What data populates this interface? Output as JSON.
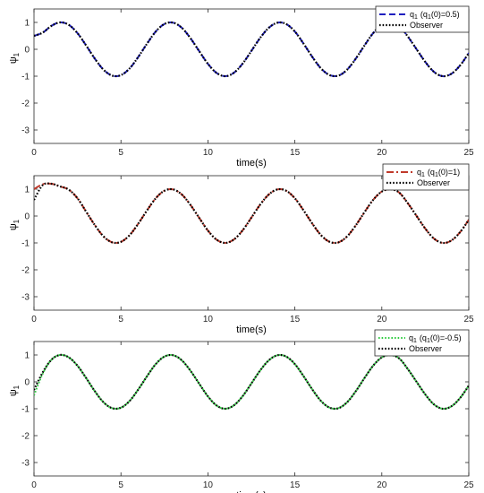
{
  "chart_data": [
    {
      "type": "line",
      "xlabel": "time(s)",
      "ylabel": "ψ",
      "ylabel_sub": "1",
      "xlim": [
        0,
        25
      ],
      "ylim": [
        -3.5,
        1.5
      ],
      "x_ticks": [
        "0",
        "5",
        "10",
        "15",
        "20",
        "25"
      ],
      "y_ticks": [
        "1",
        "0",
        "-1",
        "-2",
        "-3"
      ],
      "grid": false,
      "legend_position": "top-right",
      "x": [
        0,
        0.5,
        1,
        1.5,
        2,
        2.5,
        3,
        3.5,
        4,
        4.5,
        5,
        5.5,
        6,
        6.5,
        7,
        7.5,
        8,
        8.5,
        9,
        9.5,
        10,
        10.5,
        11,
        11.5,
        12,
        12.5,
        13,
        13.5,
        14,
        14.5,
        15,
        15.5,
        16,
        16.5,
        17,
        17.5,
        18,
        18.5,
        19,
        19.5,
        20,
        20.5,
        21,
        21.5,
        22,
        22.5,
        23,
        23.5,
        24,
        24.5,
        25
      ],
      "series": [
        {
          "name": "q₁ (q₁(0)=0.5)",
          "legend_main": "q",
          "legend_sub": "1",
          "legend_rest": "(q",
          "legend_sub2": "1",
          "legend_tail": "(0)=0.5)",
          "color": "#1f1fbf",
          "style": "dashed",
          "values": [
            0.5,
            0.62,
            0.87,
            1.0,
            0.91,
            0.6,
            0.14,
            -0.35,
            -0.76,
            -0.98,
            -0.96,
            -0.71,
            -0.28,
            0.21,
            0.66,
            0.94,
            0.99,
            0.8,
            0.41,
            -0.07,
            -0.54,
            -0.88,
            -1.0,
            -0.87,
            -0.53,
            -0.06,
            0.42,
            0.8,
            0.99,
            0.94,
            0.66,
            0.21,
            -0.28,
            -0.71,
            -0.96,
            -0.98,
            -0.76,
            -0.35,
            0.14,
            0.6,
            0.91,
            1.0,
            0.87,
            0.47,
            0.0,
            -0.47,
            -0.84,
            -1.0,
            -0.91,
            -0.6,
            -0.14
          ]
        },
        {
          "name": "Observer",
          "color": "#000000",
          "style": "dotted",
          "values": [
            0.5,
            0.62,
            0.87,
            1.0,
            0.91,
            0.6,
            0.14,
            -0.35,
            -0.76,
            -0.98,
            -0.96,
            -0.71,
            -0.28,
            0.21,
            0.66,
            0.94,
            0.99,
            0.8,
            0.41,
            -0.07,
            -0.54,
            -0.88,
            -1.0,
            -0.87,
            -0.53,
            -0.06,
            0.42,
            0.8,
            0.99,
            0.94,
            0.66,
            0.21,
            -0.28,
            -0.71,
            -0.96,
            -0.98,
            -0.76,
            -0.35,
            0.14,
            0.6,
            0.91,
            1.0,
            0.87,
            0.47,
            0.0,
            -0.47,
            -0.84,
            -1.0,
            -0.91,
            -0.6,
            -0.14
          ]
        }
      ]
    },
    {
      "type": "line",
      "xlabel": "time(s)",
      "ylabel": "ψ",
      "ylabel_sub": "1",
      "xlim": [
        0,
        25
      ],
      "ylim": [
        -3.5,
        1.5
      ],
      "x_ticks": [
        "0",
        "5",
        "10",
        "15",
        "20",
        "25"
      ],
      "y_ticks": [
        "1",
        "0",
        "-1",
        "-2",
        "-3"
      ],
      "grid": false,
      "legend_position": "top-right",
      "x": [
        0,
        0.5,
        1,
        1.5,
        2,
        2.5,
        3,
        3.5,
        4,
        4.5,
        5,
        5.5,
        6,
        6.5,
        7,
        7.5,
        8,
        8.5,
        9,
        9.5,
        10,
        10.5,
        11,
        11.5,
        12,
        12.5,
        13,
        13.5,
        14,
        14.5,
        15,
        15.5,
        16,
        16.5,
        17,
        17.5,
        18,
        18.5,
        19,
        19.5,
        20,
        20.5,
        21,
        21.5,
        22,
        22.5,
        23,
        23.5,
        24,
        24.5,
        25
      ],
      "series": [
        {
          "name": "q₁ (q₁(0)=1)",
          "legend_main": "q",
          "legend_sub": "1",
          "legend_rest": "(q",
          "legend_sub2": "1",
          "legend_tail": "(0)=1)",
          "color": "#c0392b",
          "style": "dashdot",
          "values": [
            1.0,
            1.18,
            1.2,
            1.1,
            0.98,
            0.66,
            0.16,
            -0.34,
            -0.76,
            -0.98,
            -0.96,
            -0.71,
            -0.28,
            0.21,
            0.66,
            0.94,
            0.99,
            0.8,
            0.41,
            -0.07,
            -0.54,
            -0.88,
            -1.0,
            -0.87,
            -0.53,
            -0.06,
            0.42,
            0.8,
            0.99,
            0.94,
            0.66,
            0.21,
            -0.28,
            -0.71,
            -0.96,
            -0.98,
            -0.76,
            -0.35,
            0.14,
            0.6,
            0.91,
            1.0,
            0.87,
            0.47,
            0.0,
            -0.47,
            -0.84,
            -1.0,
            -0.91,
            -0.6,
            -0.14
          ]
        },
        {
          "name": "Observer",
          "color": "#000000",
          "style": "dotted",
          "values": [
            0.6,
            1.15,
            1.2,
            1.1,
            0.98,
            0.66,
            0.16,
            -0.34,
            -0.76,
            -0.98,
            -0.96,
            -0.71,
            -0.28,
            0.21,
            0.66,
            0.94,
            0.99,
            0.8,
            0.41,
            -0.07,
            -0.54,
            -0.88,
            -1.0,
            -0.87,
            -0.53,
            -0.06,
            0.42,
            0.8,
            0.99,
            0.94,
            0.66,
            0.21,
            -0.28,
            -0.71,
            -0.96,
            -0.98,
            -0.76,
            -0.35,
            0.14,
            0.6,
            0.91,
            1.0,
            0.87,
            0.47,
            0.0,
            -0.47,
            -0.84,
            -1.0,
            -0.91,
            -0.6,
            -0.14
          ]
        }
      ]
    },
    {
      "type": "line",
      "xlabel": "time(s)",
      "ylabel": "ψ",
      "ylabel_sub": "1",
      "xlim": [
        0,
        25
      ],
      "ylim": [
        -3.5,
        1.5
      ],
      "x_ticks": [
        "0",
        "5",
        "10",
        "15",
        "20",
        "25"
      ],
      "y_ticks": [
        "1",
        "0",
        "-1",
        "-2",
        "-3"
      ],
      "grid": false,
      "legend_position": "top-right",
      "x": [
        0,
        0.5,
        1,
        1.5,
        2,
        2.5,
        3,
        3.5,
        4,
        4.5,
        5,
        5.5,
        6,
        6.5,
        7,
        7.5,
        8,
        8.5,
        9,
        9.5,
        10,
        10.5,
        11,
        11.5,
        12,
        12.5,
        13,
        13.5,
        14,
        14.5,
        15,
        15.5,
        16,
        16.5,
        17,
        17.5,
        18,
        18.5,
        19,
        19.5,
        20,
        20.5,
        21,
        21.5,
        22,
        22.5,
        23,
        23.5,
        24,
        24.5,
        25
      ],
      "series": [
        {
          "name": "q₁ (q₁(0)=-0.5)",
          "legend_main": "q",
          "legend_sub": "1",
          "legend_rest": "(q",
          "legend_sub2": "1",
          "legend_tail": "(0)=-0.5)",
          "color": "#2ecc40",
          "style": "dotted",
          "values": [
            -0.5,
            0.3,
            0.82,
            1.0,
            0.91,
            0.6,
            0.14,
            -0.35,
            -0.76,
            -0.98,
            -0.96,
            -0.71,
            -0.28,
            0.21,
            0.66,
            0.94,
            0.99,
            0.8,
            0.41,
            -0.07,
            -0.54,
            -0.88,
            -1.0,
            -0.87,
            -0.53,
            -0.06,
            0.42,
            0.8,
            0.99,
            0.94,
            0.66,
            0.21,
            -0.28,
            -0.71,
            -0.96,
            -0.98,
            -0.76,
            -0.35,
            0.14,
            0.6,
            0.91,
            1.0,
            0.87,
            0.47,
            0.0,
            -0.47,
            -0.84,
            -1.0,
            -0.91,
            -0.6,
            -0.14
          ]
        },
        {
          "name": "Observer",
          "color": "#000000",
          "style": "dotted",
          "values": [
            -0.3,
            0.35,
            0.82,
            1.0,
            0.91,
            0.6,
            0.14,
            -0.35,
            -0.76,
            -0.98,
            -0.96,
            -0.71,
            -0.28,
            0.21,
            0.66,
            0.94,
            0.99,
            0.8,
            0.41,
            -0.07,
            -0.54,
            -0.88,
            -1.0,
            -0.87,
            -0.53,
            -0.06,
            0.42,
            0.8,
            0.99,
            0.94,
            0.66,
            0.21,
            -0.28,
            -0.71,
            -0.96,
            -0.98,
            -0.76,
            -0.35,
            0.14,
            0.6,
            0.91,
            1.0,
            0.87,
            0.47,
            0.0,
            -0.47,
            -0.84,
            -1.0,
            -0.91,
            -0.6,
            -0.14
          ]
        }
      ]
    }
  ]
}
